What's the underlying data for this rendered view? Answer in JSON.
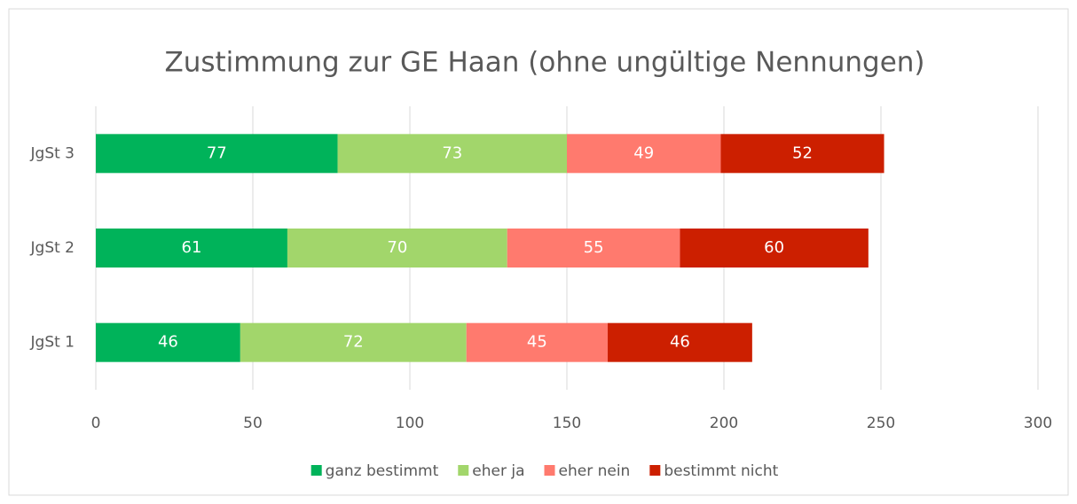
{
  "chart_data": {
    "type": "stacked-bar-horizontal",
    "title": "Zustimmung zur GE Haan (ohne ungültige Nennungen)",
    "categories": [
      "JgSt 1",
      "JgSt 2",
      "JgSt 3"
    ],
    "series": [
      {
        "name": "ganz bestimmt",
        "color": "#00b35a",
        "values": [
          46,
          61,
          77
        ]
      },
      {
        "name": "eher ja",
        "color": "#a2d66b",
        "values": [
          72,
          70,
          73
        ]
      },
      {
        "name": "eher nein",
        "color": "#ff7a6e",
        "values": [
          45,
          55,
          49
        ]
      },
      {
        "name": "bestimmt nicht",
        "color": "#cc1f00",
        "values": [
          46,
          60,
          52
        ]
      }
    ],
    "xlim": [
      0,
      300
    ],
    "xticks": [
      0,
      50,
      100,
      150,
      200,
      250,
      300
    ],
    "grid": true,
    "legend": "bottom"
  }
}
